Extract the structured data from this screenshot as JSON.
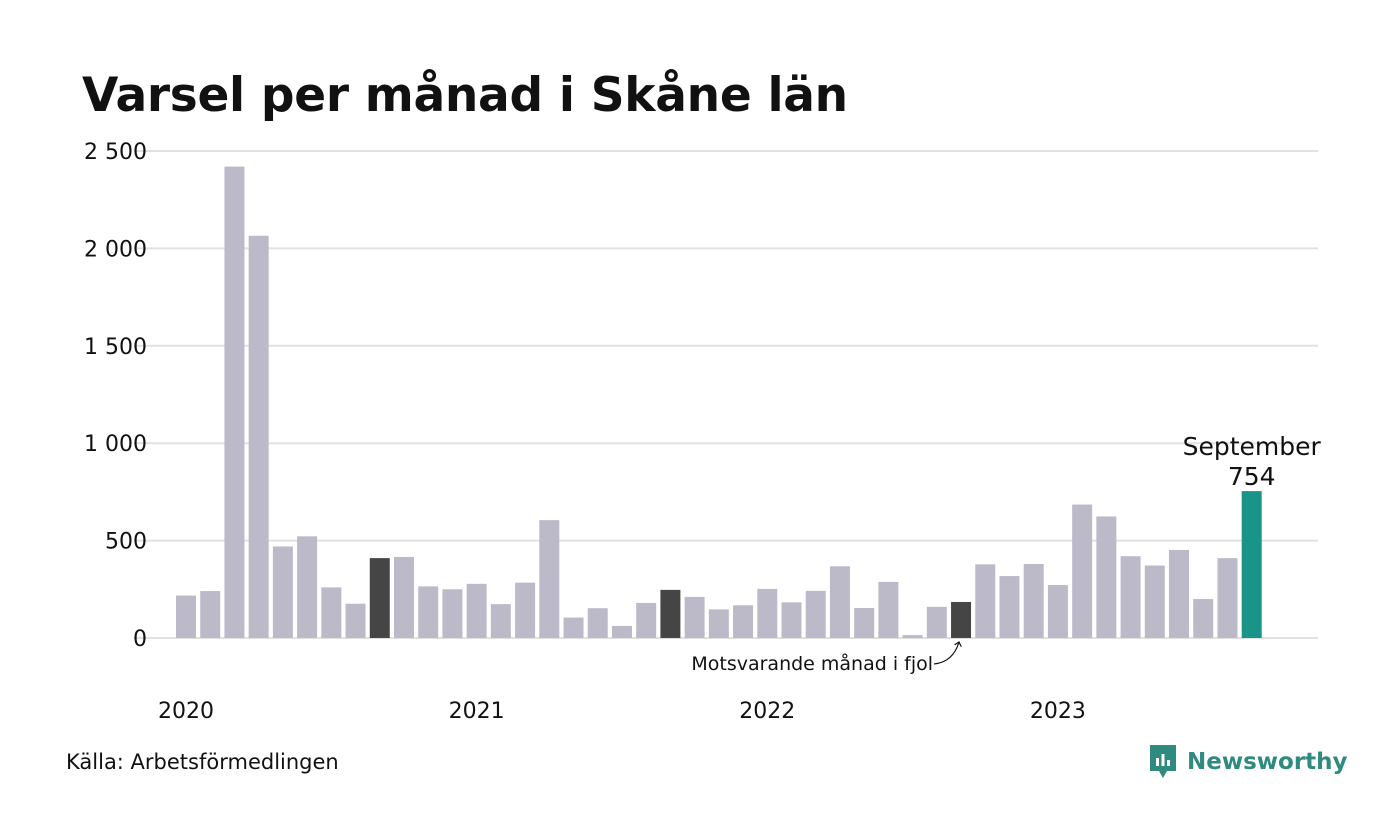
{
  "title": "Varsel per månad i Skåne län",
  "source": "Källa: Arbetsförmedlingen",
  "brand": {
    "name": "Newsworthy",
    "icon": "newsworthy-logo-icon",
    "color": "#2f8a80"
  },
  "colors": {
    "default": "#bcbac8",
    "comparison": "#454545",
    "highlight": "#1a9488",
    "grid": "#e1e1e1"
  },
  "chart_data": {
    "type": "bar",
    "title": "Varsel per månad i Skåne län",
    "ylim": [
      0,
      2500
    ],
    "y_ticks": [
      {
        "value": 0,
        "label": "0"
      },
      {
        "value": 500,
        "label": "500"
      },
      {
        "value": 1000,
        "label": "1 000"
      },
      {
        "value": 1500,
        "label": "1 500"
      },
      {
        "value": 2000,
        "label": "2 000"
      },
      {
        "value": 2500,
        "label": "2 500"
      }
    ],
    "x_year_labels": [
      {
        "index": 0,
        "label": "2020"
      },
      {
        "index": 12,
        "label": "2021"
      },
      {
        "index": 24,
        "label": "2022"
      },
      {
        "index": 36,
        "label": "2023"
      }
    ],
    "grid": true,
    "values": [
      218,
      241,
      2420,
      2065,
      470,
      522,
      260,
      176,
      410,
      416,
      265,
      250,
      278,
      174,
      284,
      605,
      105,
      153,
      62,
      180,
      247,
      211,
      147,
      168,
      252,
      183,
      242,
      368,
      154,
      288,
      15,
      160,
      185,
      378,
      318,
      380,
      272,
      685,
      624,
      420,
      372,
      452,
      200,
      410,
      754
    ],
    "comparison_indices": [
      8,
      20,
      32
    ],
    "highlight_index": 44,
    "highlight_label": {
      "month": "September",
      "value": "754"
    },
    "annotation": "Motsvarande månad i fjol"
  }
}
